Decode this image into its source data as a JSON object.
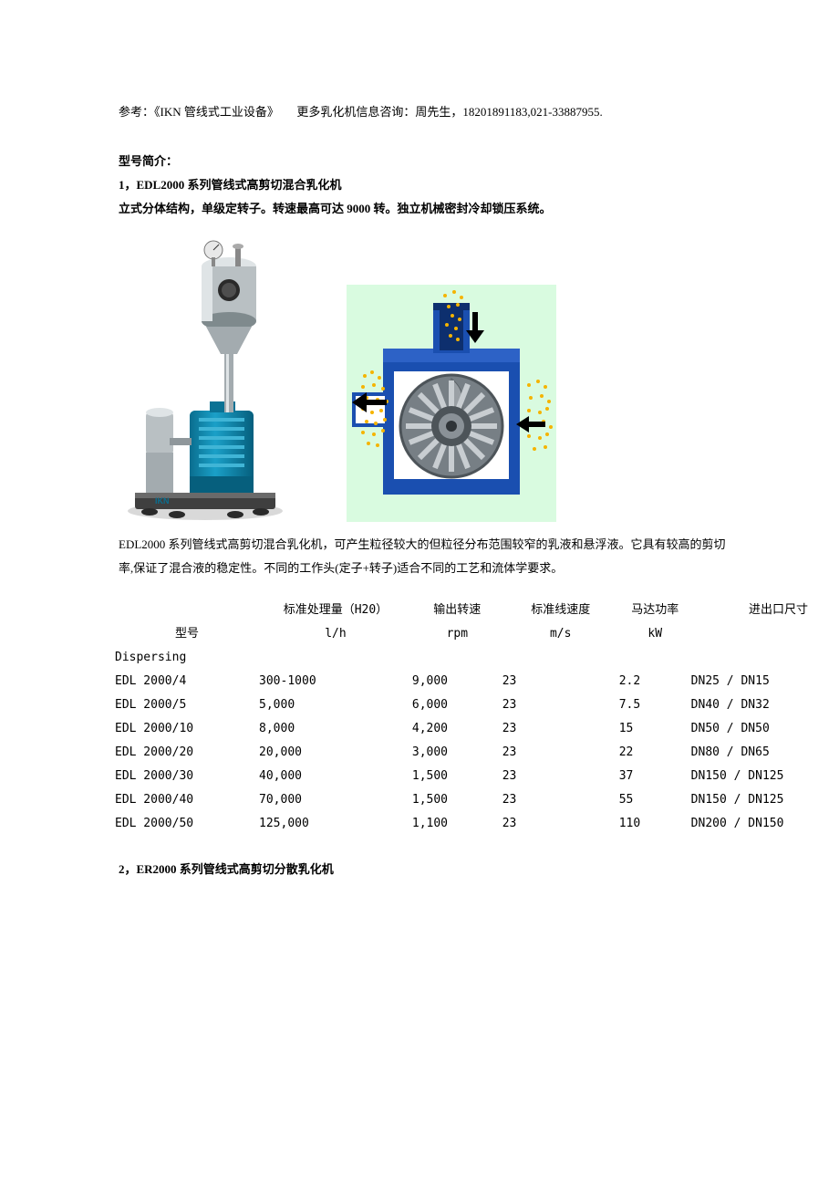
{
  "ref_text": "参考：《IKN 管线式工业设备》　　更多乳化机信息咨询：周先生，18201891183,021-33887955.",
  "section_label": "型号简介：",
  "section1_title": "1，EDL2000 系列管线式高剪切混合乳化机",
  "section1_sub": "立式分体结构，单级定转子。转速最高可达 9000 转。独立机械密封冷却锁压系统。",
  "section1_desc": "EDL2000 系列管线式高剪切混合乳化机，可产生粒径较大的但粒径分布范围较窄的乳液和悬浮液。它具有较高的剪切率,保证了混合液的稳定性。不同的工作头(定子+转子)适合不同的工艺和流体学要求。",
  "table_headers": {
    "col1": "型号",
    "col2_top": "标准处理量（H20）",
    "col2_unit": "l/h",
    "col3_top": "输出转速",
    "col3_unit": "rpm",
    "col4_top": "标准线速度",
    "col4_unit": "m/s",
    "col5_top": "马达功率",
    "col5_unit": "kW",
    "col6_top": "进出口尺寸"
  },
  "table_group": "Dispersing",
  "rows": [
    {
      "model": "EDL 2000/4",
      "cap": "300-1000",
      "rpm": "9,000",
      "ms": "23",
      "kw": "2.2",
      "dn": "DN25 / DN15"
    },
    {
      "model": "EDL 2000/5",
      "cap": "5,000",
      "rpm": "6,000",
      "ms": "23",
      "kw": "7.5",
      "dn": "DN40 / DN32"
    },
    {
      "model": "EDL 2000/10",
      "cap": "8,000",
      "rpm": "4,200",
      "ms": "23",
      "kw": "15",
      "dn": "DN50 / DN50"
    },
    {
      "model": "EDL 2000/20",
      "cap": "20,000",
      "rpm": "3,000",
      "ms": "23",
      "kw": "22",
      "dn": "DN80 / DN65"
    },
    {
      "model": "EDL 2000/30",
      "cap": "40,000",
      "rpm": "1,500",
      "ms": "23",
      "kw": "37",
      "dn": "DN150 / DN125"
    },
    {
      "model": "EDL 2000/40",
      "cap": "70,000",
      "rpm": "1,500",
      "ms": "23",
      "kw": "55",
      "dn": "DN150 / DN125"
    },
    {
      "model": "EDL 2000/50",
      "cap": "125,000",
      "rpm": "1,100",
      "ms": "23",
      "kw": "110",
      "dn": "DN200 / DN150"
    }
  ],
  "section2_title": "2，ER2000 系列管线式高剪切分散乳化机",
  "fig": {
    "machine_colors": {
      "steel": "#b9c0c3",
      "steel_dark": "#7f8a8d",
      "steel_light": "#dfe4e6",
      "motor": "#0d8bb3",
      "motor_dark": "#065f7d",
      "base": "#4a4a4a",
      "shadow": "#c9c9c9",
      "label": "IKN",
      "label_color": "#0a6e8f"
    },
    "cutaway_colors": {
      "bg": "#d9fbe0",
      "body": "#1a4fb0",
      "body_dark": "#0d2f6e",
      "rotor": "#9aa0a5",
      "rotor_dark": "#5a6166",
      "particles": "#f5b400",
      "arrow": "#000000"
    }
  }
}
